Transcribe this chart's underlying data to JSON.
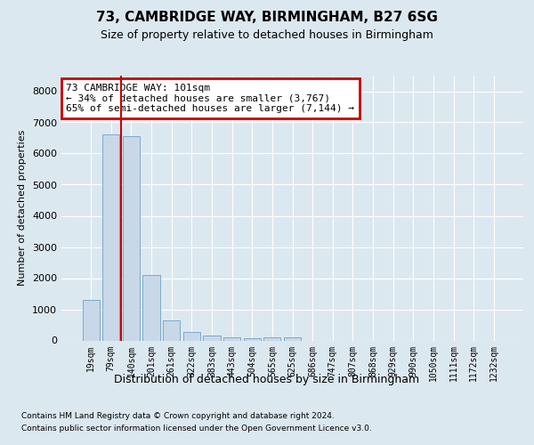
{
  "title1": "73, CAMBRIDGE WAY, BIRMINGHAM, B27 6SG",
  "title2": "Size of property relative to detached houses in Birmingham",
  "xlabel": "Distribution of detached houses by size in Birmingham",
  "ylabel": "Number of detached properties",
  "categories": [
    "19sqm",
    "79sqm",
    "140sqm",
    "201sqm",
    "261sqm",
    "322sqm",
    "383sqm",
    "443sqm",
    "504sqm",
    "565sqm",
    "625sqm",
    "686sqm",
    "747sqm",
    "807sqm",
    "868sqm",
    "929sqm",
    "990sqm",
    "1050sqm",
    "1111sqm",
    "1172sqm",
    "1232sqm"
  ],
  "values": [
    1300,
    6600,
    6550,
    2100,
    650,
    280,
    150,
    100,
    60,
    100,
    100,
    0,
    0,
    0,
    0,
    0,
    0,
    0,
    0,
    0,
    0
  ],
  "bar_color": "#c8d8e8",
  "bar_edge_color": "#7baac8",
  "red_line_x": 1.5,
  "annotation_text": "73 CAMBRIDGE WAY: 101sqm\n← 34% of detached houses are smaller (3,767)\n65% of semi-detached houses are larger (7,144) →",
  "annotation_box_facecolor": "#ffffff",
  "annotation_box_edgecolor": "#cc0000",
  "ylim": [
    0,
    8500
  ],
  "yticks": [
    0,
    1000,
    2000,
    3000,
    4000,
    5000,
    6000,
    7000,
    8000
  ],
  "footnote1": "Contains HM Land Registry data © Crown copyright and database right 2024.",
  "footnote2": "Contains public sector information licensed under the Open Government Licence v3.0.",
  "bg_color": "#dce8f0",
  "grid_color": "#ffffff",
  "title1_fontsize": 11,
  "title2_fontsize": 9,
  "xlabel_fontsize": 9,
  "ylabel_fontsize": 8,
  "tick_fontsize": 8,
  "xtick_fontsize": 7,
  "annot_fontsize": 8,
  "footnote_fontsize": 6.5
}
